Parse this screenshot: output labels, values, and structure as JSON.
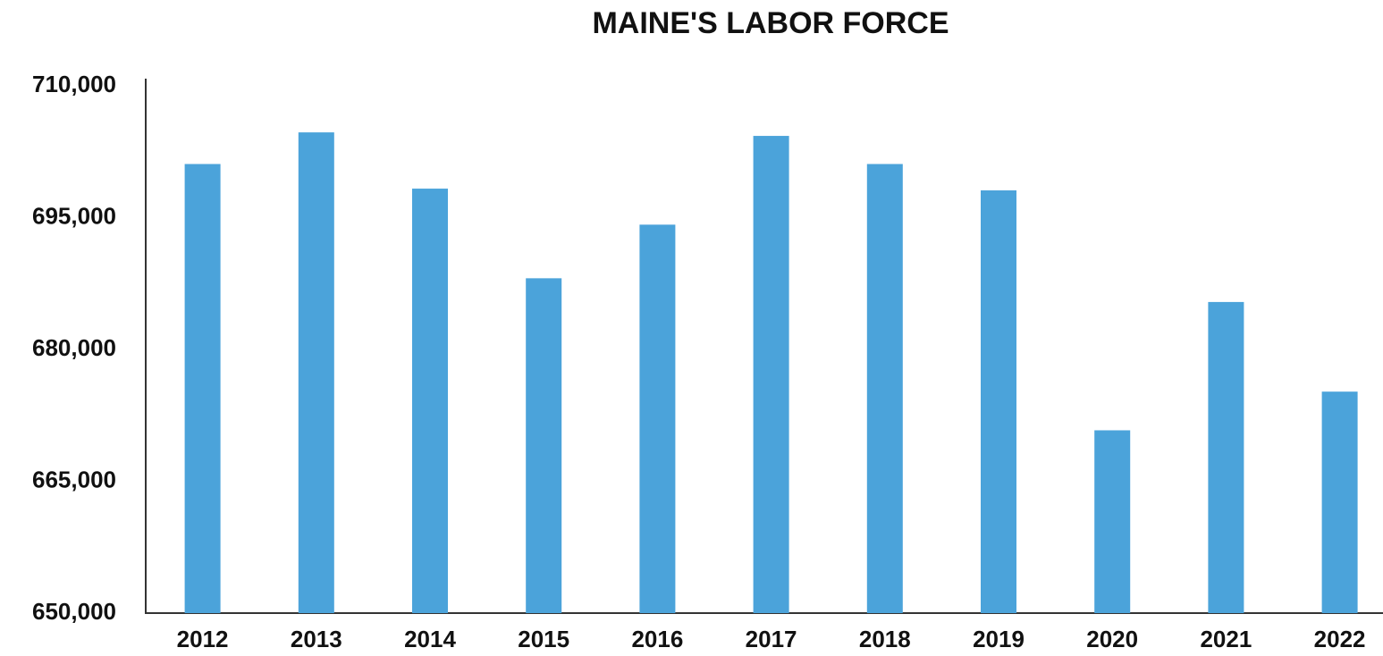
{
  "chart_data": {
    "type": "bar",
    "title": "MAINE'S LABOR FORCE",
    "categories": [
      "2012",
      "2013",
      "2014",
      "2015",
      "2016",
      "2017",
      "2018",
      "2019",
      "2020",
      "2021",
      "2022"
    ],
    "values": [
      701100,
      704700,
      698300,
      688100,
      694200,
      704300,
      701100,
      698100,
      670800,
      685400,
      675200
    ],
    "color": "#4ba3da",
    "ylim": [
      650000,
      710000
    ],
    "yticks": [
      {
        "value": 650000,
        "label": "650,000"
      },
      {
        "value": 665000,
        "label": "665,000"
      },
      {
        "value": 680000,
        "label": "680,000"
      },
      {
        "value": 695000,
        "label": "695,000"
      },
      {
        "value": 710000,
        "label": "710,000"
      }
    ],
    "grid": false
  }
}
